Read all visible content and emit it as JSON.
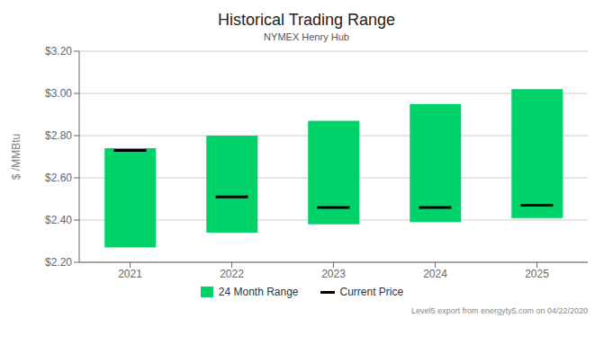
{
  "chart_data": {
    "type": "bar",
    "title": "Historical Trading Range",
    "subtitle": "NYMEX Henry Hub",
    "ylabel": "$ /MMBtu",
    "footer": "Level5 export from energyty5.com on 04/22/2020",
    "categories": [
      "2021",
      "2022",
      "2023",
      "2024",
      "2025"
    ],
    "series": [
      {
        "name": "24 Month Range",
        "type": "range_bar",
        "color": "#00d26a",
        "values": [
          [
            2.27,
            2.74
          ],
          [
            2.34,
            2.8
          ],
          [
            2.38,
            2.87
          ],
          [
            2.39,
            2.95
          ],
          [
            2.41,
            3.02
          ]
        ]
      },
      {
        "name": "Current Price",
        "type": "marker",
        "marker": "hline",
        "color": "#000000",
        "values": [
          2.73,
          2.51,
          2.46,
          2.46,
          2.47
        ]
      }
    ],
    "ylim": [
      2.2,
      3.2
    ],
    "yticks": [
      {
        "value": 2.2,
        "label": "$2.20"
      },
      {
        "value": 2.4,
        "label": "$2.40"
      },
      {
        "value": 2.6,
        "label": "$2.60"
      },
      {
        "value": 2.8,
        "label": "$2.80"
      },
      {
        "value": 3.0,
        "label": "$3.00"
      },
      {
        "value": 3.2,
        "label": "$3.20"
      }
    ],
    "grid": true
  }
}
